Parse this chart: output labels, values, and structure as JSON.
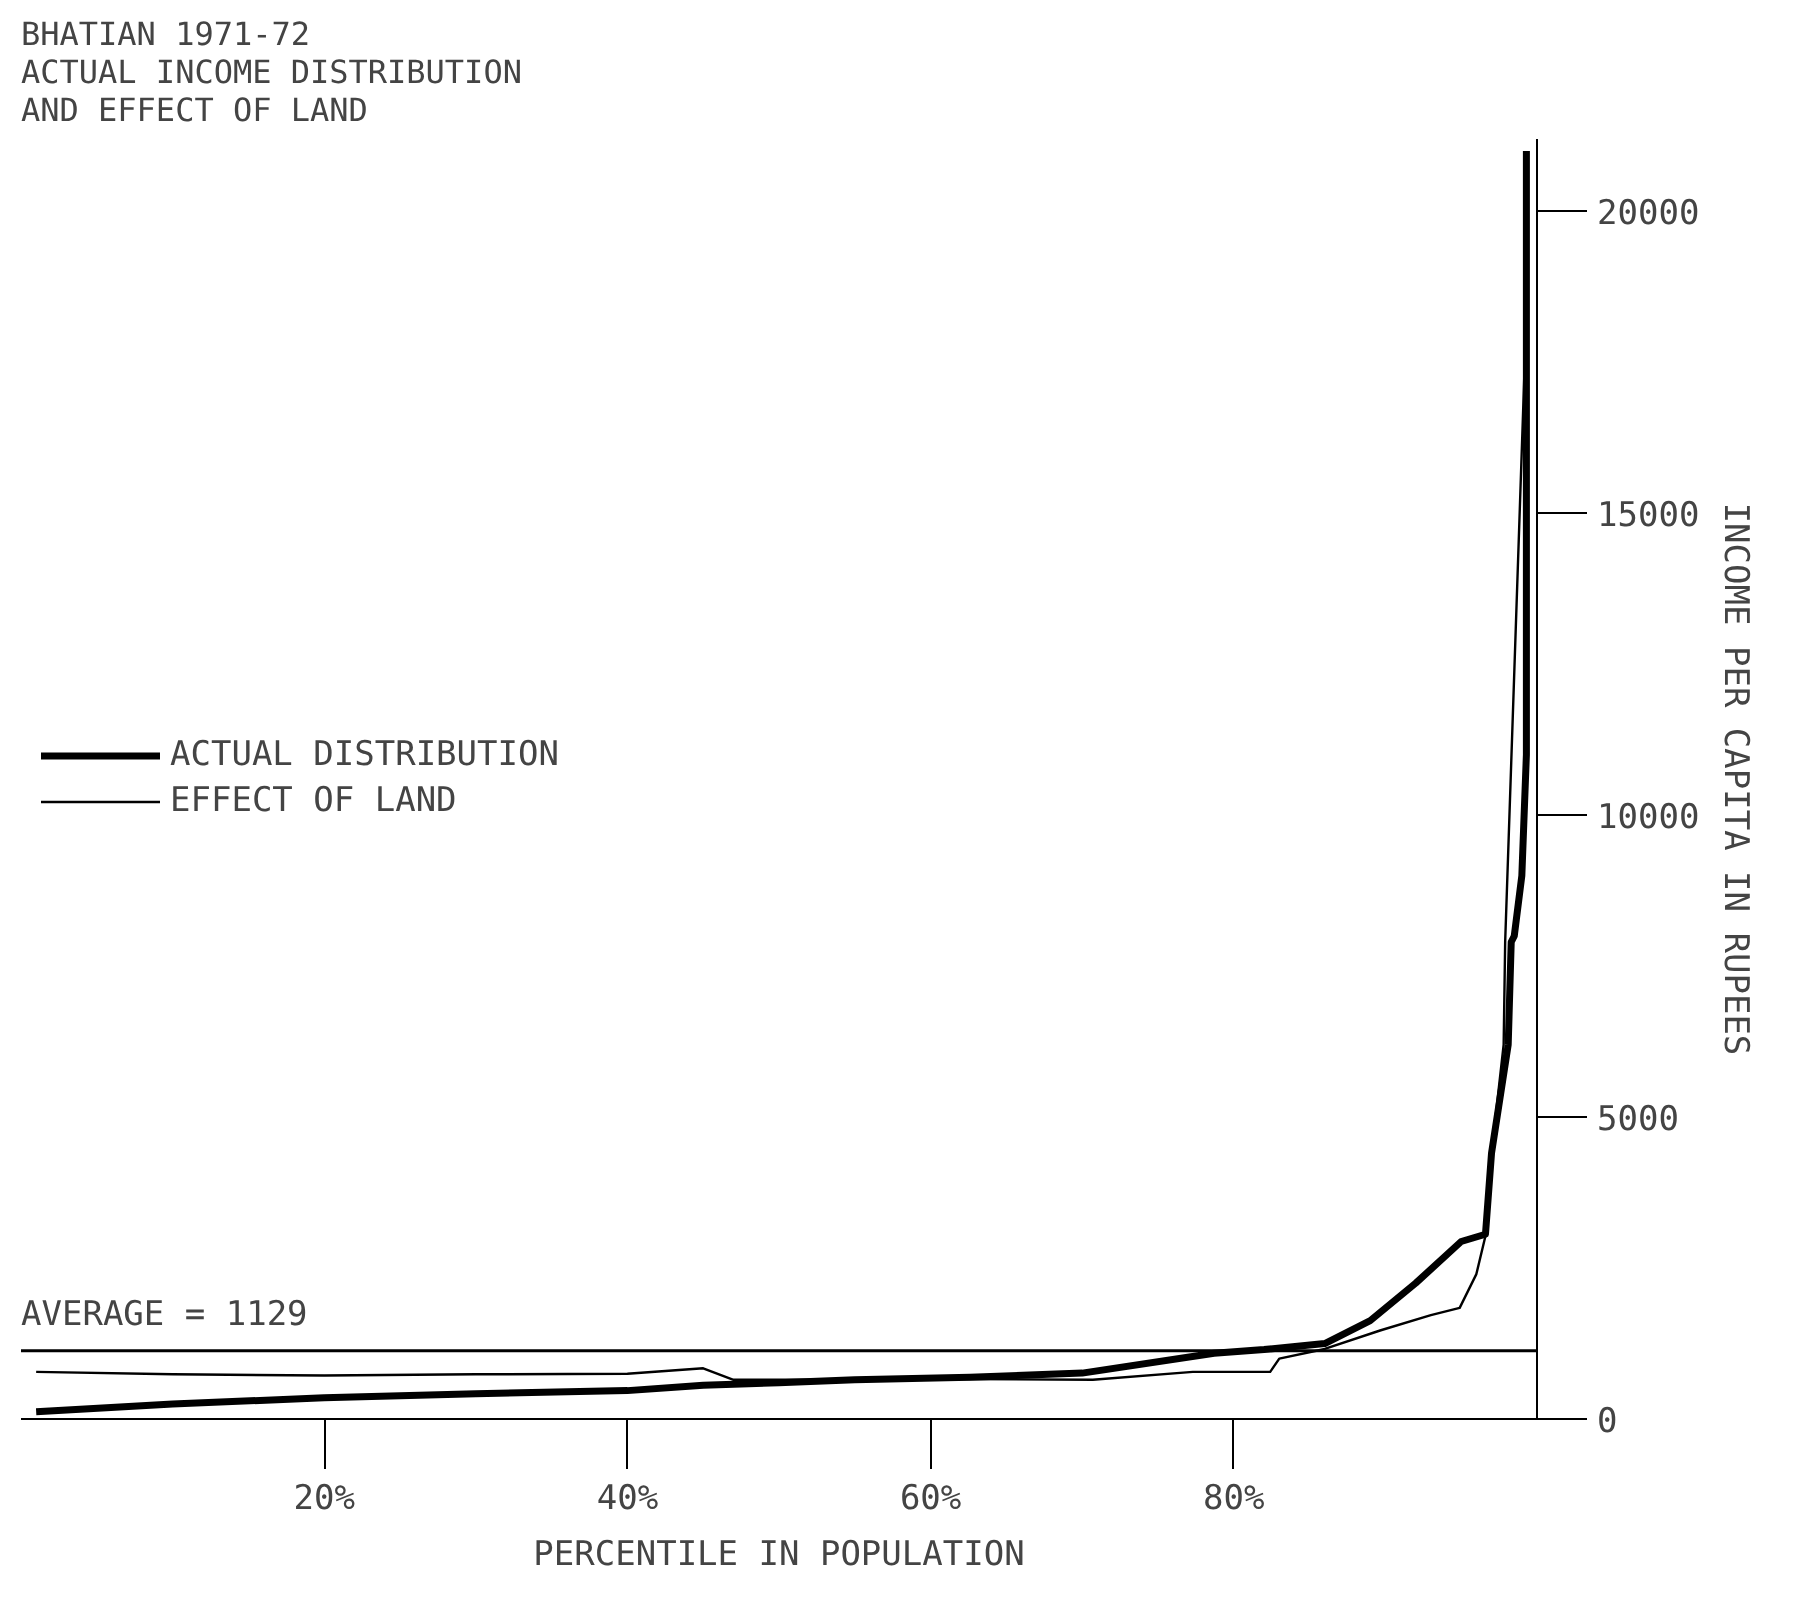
{
  "chart_data": {
    "type": "line",
    "title": "BHATIAN 1971-72\nACTUAL INCOME DISTRIBUTION\nAND EFFECT OF LAND",
    "xlabel": "PERCENTILE IN POPULATION",
    "ylabel": "INCOME PER CAPITA IN RUPEES",
    "series": [
      {
        "name": "ACTUAL DISTRIBUTION",
        "color": "#000000",
        "x": [
          1,
          10,
          20,
          30,
          40,
          45,
          50,
          55,
          62.6,
          70,
          78.7,
          82,
          86,
          89,
          92,
          95,
          96.6,
          97,
          98.1,
          98.3,
          98.5,
          99,
          99.3,
          99.3
        ],
        "values": [
          120,
          250,
          350,
          420,
          470,
          560,
          600,
          650,
          690,
          760,
          1090,
          1150,
          1250,
          1630,
          2250,
          2940,
          3060,
          4400,
          6200,
          7900,
          8000,
          9000,
          11000,
          21000
        ]
      },
      {
        "name": "EFFECT OF LAND",
        "color": "#000000",
        "x": [
          1,
          10,
          20,
          30,
          40,
          45,
          47,
          55,
          62,
          70.7,
          77.3,
          82.4,
          83,
          86,
          89.7,
          93,
          94.9,
          96,
          96.6,
          97,
          97.8,
          97.9,
          99.3
        ],
        "values": [
          780,
          740,
          720,
          740,
          750,
          840,
          650,
          650,
          660,
          650,
          780,
          780,
          1000,
          1160,
          1470,
          1720,
          1840,
          2400,
          3030,
          4400,
          6200,
          7900,
          18300
        ]
      }
    ],
    "xlim": [
      0,
      100
    ],
    "ylim": [
      0,
      21200
    ],
    "xticks": [
      {
        "value": 20,
        "label": "20%"
      },
      {
        "value": 40,
        "label": "40%"
      },
      {
        "value": 60,
        "label": "60%"
      },
      {
        "value": 80,
        "label": "80%"
      }
    ],
    "yticks": [
      0,
      5000,
      10000,
      15000,
      20000
    ],
    "ref_lines": [
      {
        "axis": "y",
        "value": 1129,
        "label": "AVERAGE = 1129",
        "color": "#000000"
      }
    ],
    "legend": "left",
    "grid": false,
    "marker": "none",
    "line_style": "solid"
  }
}
